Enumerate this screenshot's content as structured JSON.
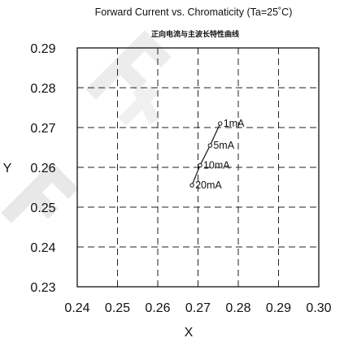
{
  "chart_data": {
    "type": "line",
    "title": "Forward Current vs. Chromaticity (Ta=25˚C)",
    "subtitle": "正向电流与主波长特性曲线",
    "xlabel": "X",
    "ylabel": "Y",
    "xlim": [
      0.24,
      0.3
    ],
    "ylim": [
      0.23,
      0.29
    ],
    "x_ticks": [
      "0.24",
      "0.25",
      "0.26",
      "0.27",
      "0.28",
      "0.29",
      "0.30"
    ],
    "y_ticks": [
      "0.23",
      "0.24",
      "0.25",
      "0.26",
      "0.27",
      "0.28",
      "0.29"
    ],
    "grid": true,
    "series": [
      {
        "points": [
          {
            "x": 0.2755,
            "y": 0.271,
            "label": "1mA"
          },
          {
            "x": 0.273,
            "y": 0.2655,
            "label": "5mA"
          },
          {
            "x": 0.2705,
            "y": 0.2605,
            "label": "10mA"
          },
          {
            "x": 0.2685,
            "y": 0.2555,
            "label": "20mA"
          }
        ]
      }
    ]
  },
  "watermark": "FFXX"
}
